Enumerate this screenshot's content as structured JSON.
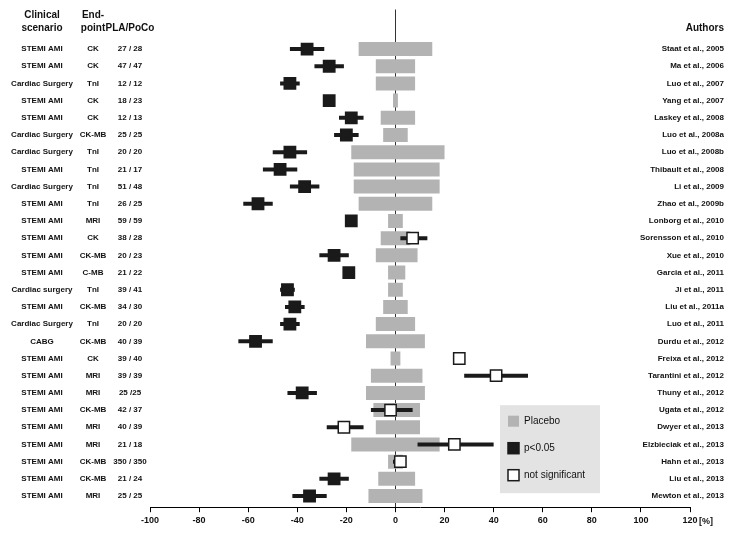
{
  "chart_data": {
    "type": "forest",
    "column_headers": {
      "scenario": [
        "Clinical",
        "scenario"
      ],
      "endpoint": [
        "End-",
        "point"
      ],
      "groups": "PLA/PoCo",
      "authors": "Authors"
    },
    "categories": [
      "Staat et al., 2005",
      "Ma et al., 2006",
      "Luo et al., 2007",
      "Yang et al., 2007",
      "Laskey et al., 2008",
      "Luo et al., 2008a",
      "Luo et al., 2008b",
      "Thibault et al., 2008",
      "Li et al., 2009",
      "Zhao et al., 2009b",
      "Lonborg et al., 2010",
      "Sorensson et al., 2010",
      "Xue et al., 2010",
      "Garcia et al., 2011",
      "Ji et al., 2011",
      "Liu et al., 2011a",
      "Luo et al., 2011",
      "Durdu et al., 2012",
      "Freixa et al., 2012",
      "Tarantini et al., 2012",
      "Thuny et al., 2012",
      "Ugata et al., 2012",
      "Dwyer et al., 2013",
      "Elzbieciak et al., 2013",
      "Hahn et al., 2013",
      "Liu et al., 2013",
      "Mewton et al., 2013"
    ],
    "scenario": [
      "STEMI AMI",
      "STEMI AMI",
      "Cardiac Surgery",
      "STEMI AMI",
      "STEMI AMI",
      "Cardiac Surgery",
      "Cardiac Surgery",
      "STEMI AMI",
      "Cardiac Surgery",
      "STEMI AMI",
      "STEMI AMI",
      "STEMI AMI",
      "STEMI AMI",
      "STEMI AMI",
      "Cardiac surgery",
      "STEMI AMI",
      "Cardiac Surgery",
      "CABG",
      "STEMI AMI",
      "STEMI AMI",
      "STEMI AMI",
      "STEMI AMI",
      "STEMI AMI",
      "STEMI AMI",
      "STEMI AMI",
      "STEMI AMI",
      "STEMI AMI"
    ],
    "endpoint": [
      "CK",
      "CK",
      "TnI",
      "CK",
      "CK",
      "CK-MB",
      "TnI",
      "TnI",
      "TnI",
      "TnI",
      "MRI",
      "CK",
      "CK-MB",
      "C-MB",
      "TnI",
      "CK-MB",
      "TnI",
      "CK-MB",
      "CK",
      "MRI",
      "MRI",
      "CK-MB",
      "MRI",
      "MRI",
      "CK-MB",
      "CK-MB",
      "MRI"
    ],
    "groups": [
      "27 / 28",
      "47 / 47",
      "12 / 12",
      "18 / 23",
      "12 / 13",
      "25 / 25",
      "20 / 20",
      "21 / 17",
      "51 / 48",
      "26 / 25",
      "59 / 59",
      "38 / 28",
      "20 / 23",
      "21 / 22",
      "39 / 41",
      "34 / 30",
      "20 / 20",
      "40 / 39",
      "39 / 40",
      "39 / 39",
      "25 /25",
      "42 / 37",
      "40 / 39",
      "21 / 18",
      "350 / 350",
      "21 / 24",
      "25 / 25"
    ],
    "series": [
      {
        "name": "Placebo",
        "color": "#b3b3b3",
        "low": [
          -15,
          -8,
          -8,
          -1,
          -6,
          -5,
          -18,
          -17,
          -17,
          -15,
          -3,
          -6,
          -8,
          -3,
          -3,
          -5,
          -8,
          -12,
          -2,
          -10,
          -12,
          -9,
          -8,
          -18,
          -3,
          -7,
          -11
        ],
        "high": [
          15,
          8,
          8,
          1,
          8,
          5,
          20,
          18,
          18,
          15,
          3,
          6,
          9,
          4,
          3,
          5,
          8,
          12,
          2,
          11,
          12,
          10,
          10,
          18,
          3,
          8,
          11
        ]
      },
      {
        "name": "p<0.05",
        "color": "#1a1a1a",
        "marker": "square",
        "values": [
          -36,
          -27,
          -43,
          -27,
          -18,
          -20,
          -43,
          -47,
          -37,
          -56,
          -18,
          null,
          -25,
          -19,
          -44,
          -41,
          -43,
          -57,
          null,
          null,
          -38,
          null,
          null,
          null,
          null,
          -25,
          -35
        ],
        "ci_low": [
          -43,
          -33,
          -47,
          null,
          -23,
          -25,
          -50,
          -54,
          -43,
          -62,
          -20,
          null,
          -31,
          -21,
          -47,
          -45,
          -47,
          -64,
          null,
          null,
          -44,
          null,
          null,
          null,
          null,
          -31,
          -42
        ],
        "ci_high": [
          -29,
          -21,
          -39,
          null,
          -13,
          -15,
          -36,
          -40,
          -31,
          -50,
          -16,
          null,
          -19,
          -17,
          -41,
          -37,
          -39,
          -50,
          null,
          null,
          -32,
          null,
          null,
          null,
          null,
          -19,
          -28
        ]
      },
      {
        "name": "not significant",
        "color": "#ffffff",
        "marker": "square",
        "values": [
          null,
          null,
          null,
          null,
          null,
          null,
          null,
          null,
          null,
          null,
          null,
          7,
          null,
          null,
          null,
          null,
          null,
          null,
          26,
          41,
          null,
          -2,
          -21,
          24,
          2,
          null,
          null
        ],
        "ci_low": [
          null,
          null,
          null,
          null,
          null,
          null,
          null,
          null,
          null,
          null,
          null,
          2,
          null,
          null,
          null,
          null,
          null,
          null,
          null,
          28,
          null,
          -10,
          -28,
          9,
          -1,
          null,
          null
        ],
        "ci_high": [
          null,
          null,
          null,
          null,
          null,
          null,
          null,
          null,
          null,
          null,
          null,
          13,
          null,
          null,
          null,
          null,
          null,
          null,
          null,
          54,
          null,
          7,
          -13,
          40,
          4,
          null,
          null
        ]
      }
    ],
    "xlabel": "[%]",
    "xlim": [
      -100,
      120
    ],
    "xticks": [
      -100,
      -80,
      -60,
      -40,
      -20,
      0,
      20,
      40,
      60,
      80,
      100,
      120
    ],
    "legend": "lower right"
  }
}
